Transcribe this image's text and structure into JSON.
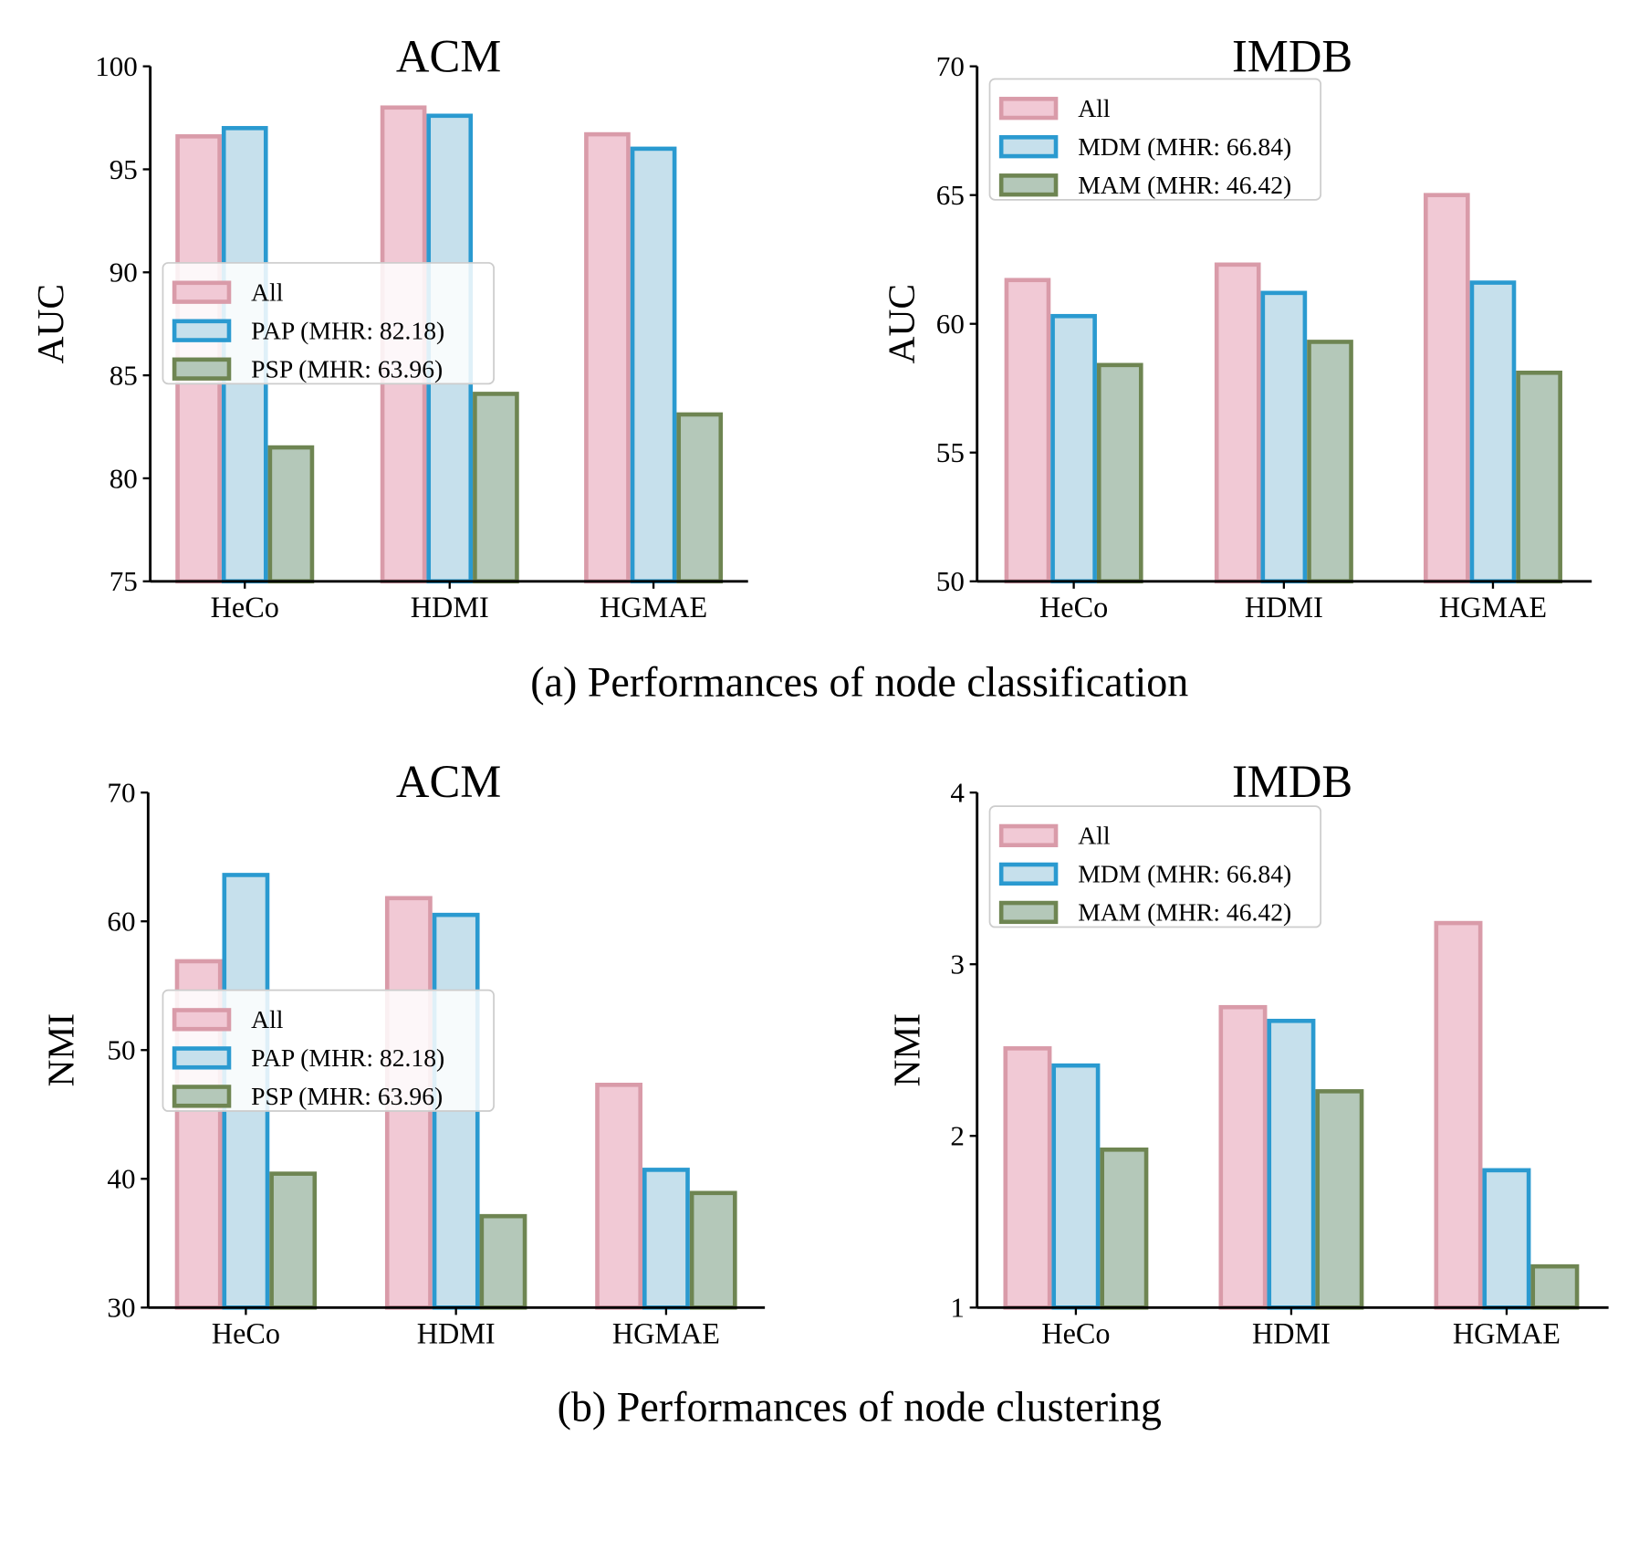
{
  "captions": [
    "(a) Performances of node classification",
    "(b) Performances of node clustering"
  ],
  "colors": {
    "all_fill": "#f1c9d5",
    "all_edge": "#d99ba9",
    "b_fill": "#c6e0ec",
    "b_edge": "#2a9ad0",
    "c_fill": "#b4c8b9",
    "c_edge": "#6e8552"
  },
  "chart_data": [
    {
      "type": "bar",
      "title": "ACM",
      "ylabel": "AUC",
      "ylim": [
        75,
        100
      ],
      "yticks": [
        75,
        80,
        85,
        90,
        95,
        100
      ],
      "categories": [
        "HeCo",
        "HDMI",
        "HGMAE"
      ],
      "legend": "center-left",
      "series": [
        {
          "name": "All",
          "values": [
            96.6,
            98.0,
            96.7
          ]
        },
        {
          "name": "PAP (MHR: 82.18)",
          "values": [
            97.0,
            97.6,
            96.0
          ]
        },
        {
          "name": "PSP (MHR: 63.96)",
          "values": [
            81.5,
            84.1,
            83.1
          ]
        }
      ]
    },
    {
      "type": "bar",
      "title": "IMDB",
      "ylabel": "AUC",
      "ylim": [
        50,
        70
      ],
      "yticks": [
        50,
        55,
        60,
        65,
        70
      ],
      "categories": [
        "HeCo",
        "HDMI",
        "HGMAE"
      ],
      "legend": "top-left",
      "series": [
        {
          "name": "All",
          "values": [
            61.7,
            62.3,
            65.0
          ]
        },
        {
          "name": "MDM (MHR: 66.84)",
          "values": [
            60.3,
            61.2,
            61.6
          ]
        },
        {
          "name": "MAM (MHR: 46.42)",
          "values": [
            58.4,
            59.3,
            58.1
          ]
        }
      ]
    },
    {
      "type": "bar",
      "title": "ACM",
      "ylabel": "NMI",
      "ylim": [
        30,
        70
      ],
      "yticks": [
        30,
        40,
        50,
        60,
        70
      ],
      "categories": [
        "HeCo",
        "HDMI",
        "HGMAE"
      ],
      "legend": "center-left",
      "series": [
        {
          "name": "All",
          "values": [
            56.9,
            61.8,
            47.3
          ]
        },
        {
          "name": "PAP (MHR: 82.18)",
          "values": [
            63.6,
            60.5,
            40.7
          ]
        },
        {
          "name": "PSP (MHR: 63.96)",
          "values": [
            40.4,
            37.1,
            38.9
          ]
        }
      ]
    },
    {
      "type": "bar",
      "title": "IMDB",
      "ylabel": "NMI",
      "ylim": [
        1,
        4
      ],
      "yticks": [
        1,
        2,
        3,
        4
      ],
      "categories": [
        "HeCo",
        "HDMI",
        "HGMAE"
      ],
      "legend": "top-left",
      "series": [
        {
          "name": "All",
          "values": [
            2.51,
            2.75,
            3.24
          ]
        },
        {
          "name": "MDM (MHR: 66.84)",
          "values": [
            2.41,
            2.67,
            1.8
          ]
        },
        {
          "name": "MAM (MHR: 46.42)",
          "values": [
            1.92,
            2.26,
            1.24
          ]
        }
      ]
    }
  ]
}
